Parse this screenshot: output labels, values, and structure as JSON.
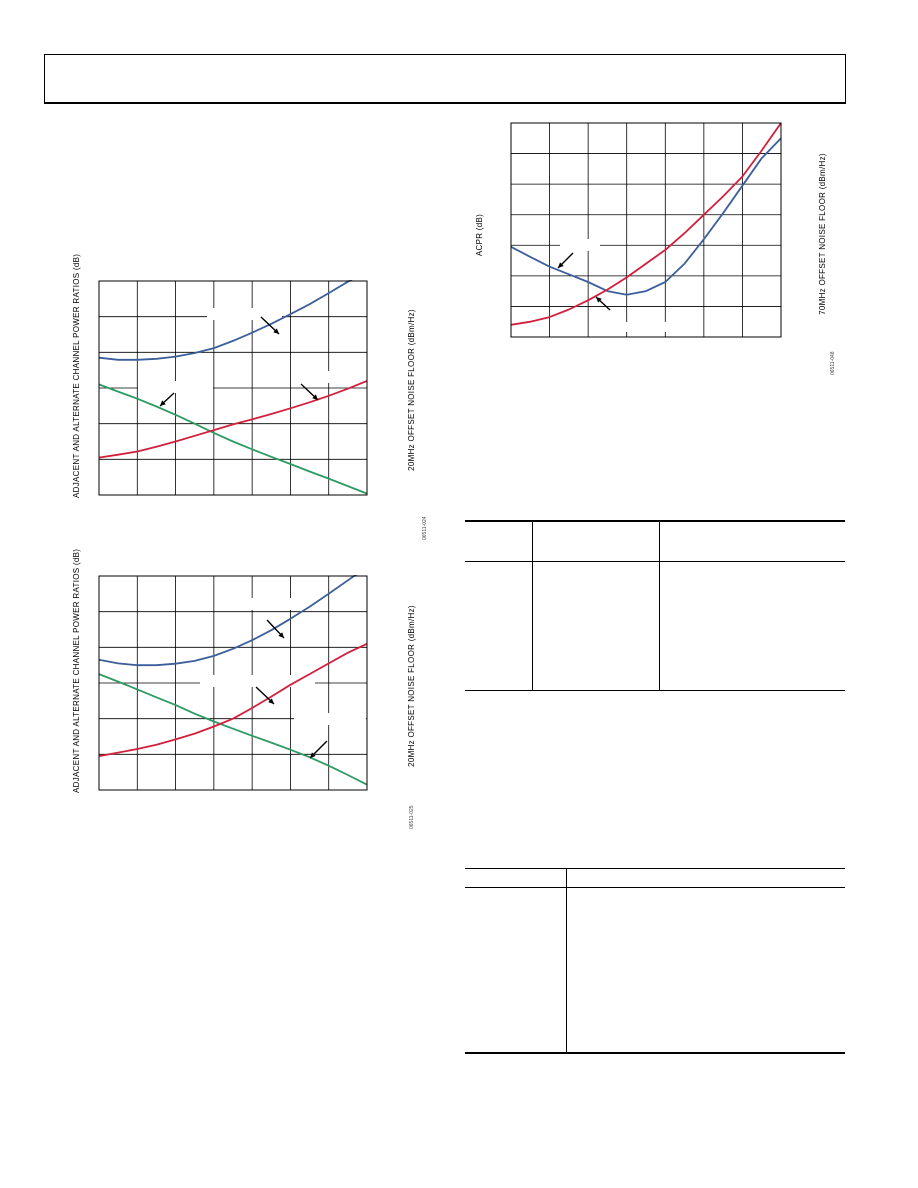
{
  "colors": {
    "adjacent_curve": "#3b5f9a",
    "alternate_curve": "#2e9a63",
    "noise_floor_curve": "#d21f3c",
    "grid": "#000000"
  },
  "chart_data": [
    {
      "type": "line",
      "ylabel": "ADJACENT AND ALTERNATE CHANNEL POWER RATIOS (dB)",
      "y2label": "20MHz OFFSET NOISE FLOOR (dBm/Hz)",
      "figure_id": "06511-024",
      "x": [
        0,
        0.5,
        1,
        1.5,
        2,
        2.5,
        3,
        3.5,
        4,
        4.5,
        5,
        5.5,
        6,
        6.5,
        7
      ],
      "xlim": [
        0,
        7
      ],
      "ylim": [
        0,
        6
      ],
      "grid": true,
      "series": [
        {
          "key": "adjacent",
          "values": [
            3.85,
            3.79,
            3.79,
            3.82,
            3.88,
            3.98,
            4.12,
            4.32,
            4.55,
            4.8,
            5.07,
            5.35,
            5.66,
            5.98,
            6.3
          ]
        },
        {
          "key": "alternate",
          "values": [
            3.1,
            2.9,
            2.7,
            2.48,
            2.25,
            2.0,
            1.74,
            1.5,
            1.28,
            1.07,
            0.87,
            0.66,
            0.46,
            0.25,
            0.04
          ]
        },
        {
          "key": "noise_floor",
          "values": [
            1.05,
            1.13,
            1.22,
            1.35,
            1.5,
            1.66,
            1.82,
            1.98,
            2.12,
            2.27,
            2.43,
            2.6,
            2.78,
            2.98,
            3.2
          ]
        }
      ]
    },
    {
      "type": "line",
      "ylabel": "ADJACENT AND ALTERNATE CHANNEL POWER RATIOS (dB)",
      "y2label": "20MHz OFFSET NOISE FLOOR (dBm/Hz)",
      "figure_id": "06511-025",
      "x": [
        0,
        0.5,
        1,
        1.5,
        2,
        2.5,
        3,
        3.5,
        4,
        4.5,
        5,
        5.5,
        6,
        6.5,
        7
      ],
      "xlim": [
        0,
        7
      ],
      "ylim": [
        0,
        6
      ],
      "grid": true,
      "series": [
        {
          "key": "adjacent",
          "values": [
            3.65,
            3.55,
            3.5,
            3.5,
            3.54,
            3.62,
            3.76,
            3.96,
            4.2,
            4.48,
            4.8,
            5.14,
            5.5,
            5.88,
            6.25
          ]
        },
        {
          "key": "alternate",
          "values": [
            3.25,
            3.04,
            2.82,
            2.6,
            2.38,
            2.14,
            1.92,
            1.72,
            1.52,
            1.33,
            1.13,
            0.92,
            0.68,
            0.42,
            0.15
          ]
        },
        {
          "key": "noise_floor",
          "values": [
            0.95,
            1.05,
            1.15,
            1.27,
            1.42,
            1.58,
            1.78,
            2.0,
            2.3,
            2.62,
            2.95,
            3.25,
            3.55,
            3.85,
            4.1
          ]
        }
      ]
    },
    {
      "type": "line",
      "ylabel": "ACPR (dB)",
      "y2label": "70MHz OFFSET NOISE FLOOR (dBm/Hz)",
      "figure_id": "06511-048",
      "x": [
        0,
        0.5,
        1,
        1.5,
        2,
        2.5,
        3,
        3.5,
        4,
        4.5,
        5,
        5.5,
        6,
        6.5,
        7
      ],
      "xlim": [
        0,
        7
      ],
      "ylim": [
        0,
        7
      ],
      "grid": true,
      "series": [
        {
          "key": "acpr",
          "values": [
            2.95,
            2.62,
            2.3,
            2.05,
            1.8,
            1.5,
            1.38,
            1.5,
            1.8,
            2.4,
            3.2,
            4.05,
            4.95,
            5.85,
            6.5
          ]
        },
        {
          "key": "noise_floor",
          "values": [
            0.4,
            0.5,
            0.65,
            0.9,
            1.2,
            1.55,
            1.95,
            2.4,
            2.85,
            3.4,
            4.0,
            4.6,
            5.25,
            6.1,
            7.0
          ]
        }
      ]
    }
  ]
}
